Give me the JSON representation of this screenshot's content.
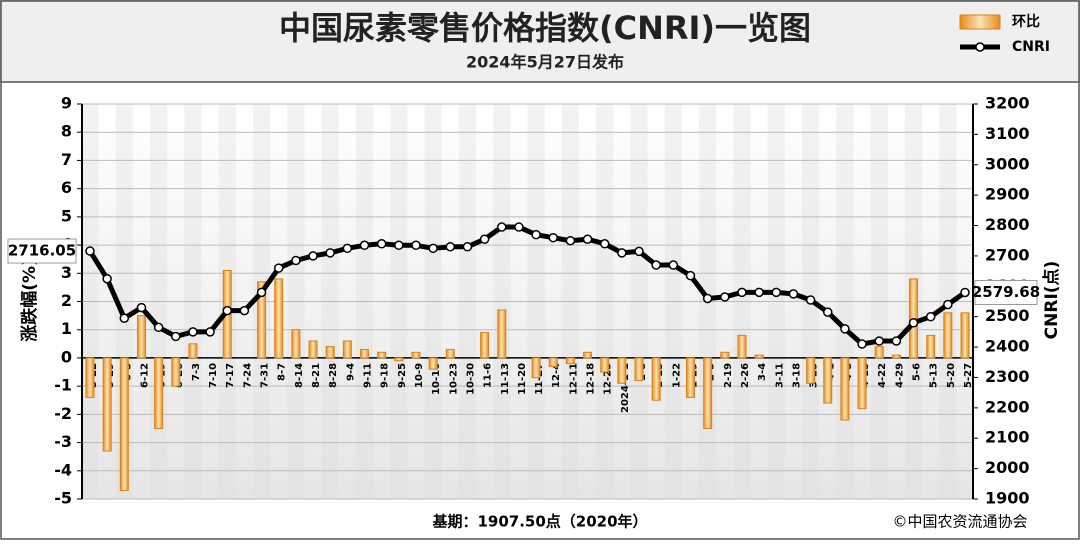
{
  "chart_data": {
    "type": "combo",
    "title": "中国尿素零售价格指数(CNRI)一览图",
    "subtitle": "2024年5月27日发布",
    "ylabel": "涨跌幅(%)",
    "y2label": "CNRI(点)",
    "footnote": "基期：1907.50点（2020年）",
    "source": "©中国农资流通协会",
    "legend": "top-right",
    "grid": true,
    "categories": [
      "5-22",
      "5-29",
      "6-5",
      "6-12",
      "6-19",
      "6-26",
      "7-3",
      "7-10",
      "7-17",
      "7-24",
      "7-31",
      "8-7",
      "8-14",
      "8-21",
      "8-28",
      "9-4",
      "9-11",
      "9-18",
      "9-25",
      "10-9",
      "10-16",
      "10-23",
      "10-30",
      "11-6",
      "11-13",
      "11-20",
      "11-27",
      "12-4",
      "12-11",
      "12-18",
      "12-25",
      "2024-1-1",
      "1-8",
      "1-15",
      "1-22",
      "1-29",
      "2-5",
      "2-19",
      "2-26",
      "3-4",
      "3-11",
      "3-18",
      "3-25",
      "4-1",
      "4-8",
      "4-15",
      "4-22",
      "4-29",
      "5-6",
      "5-13",
      "5-20",
      "5-27"
    ],
    "series": [
      {
        "name": "环比",
        "type": "bar",
        "color": "#f5c77e",
        "values": [
          -1.4,
          -3.3,
          -4.7,
          1.5,
          -2.5,
          -1.0,
          0.5,
          0.0,
          3.1,
          0.0,
          2.7,
          2.8,
          1.0,
          0.6,
          0.4,
          0.6,
          0.3,
          0.2,
          -0.1,
          0.2,
          -0.4,
          0.3,
          0.0,
          0.9,
          1.7,
          0.0,
          -0.7,
          -0.3,
          -0.2,
          0.2,
          -0.5,
          -0.9,
          -0.8,
          -1.5,
          0.0,
          -1.4,
          -2.5,
          0.2,
          0.8,
          0.1,
          0.0,
          0.0,
          -0.9,
          -1.6,
          -2.2,
          -1.8,
          0.4,
          0.1,
          2.8,
          0.8,
          1.6,
          1.6
        ]
      },
      {
        "name": "CNRI",
        "type": "line",
        "axis": "y2",
        "color": "#000000",
        "values": [
          2716.05,
          2625,
          2495,
          2530,
          2465,
          2435,
          2450,
          2450,
          2520,
          2520,
          2580,
          2660,
          2685,
          2700,
          2710,
          2725,
          2735,
          2740,
          2735,
          2735,
          2725,
          2730,
          2730,
          2755,
          2795,
          2795,
          2770,
          2760,
          2750,
          2755,
          2740,
          2710,
          2715,
          2670,
          2670,
          2635,
          2560,
          2565,
          2580,
          2580,
          2580,
          2575,
          2555,
          2515,
          2460,
          2410,
          2420,
          2420,
          2480,
          2500,
          2540,
          2579.68
        ]
      }
    ],
    "ylim": [
      -5,
      9
    ],
    "yticks": [
      -5,
      -4,
      -3,
      -2,
      -1,
      0,
      1,
      2,
      3,
      4,
      5,
      6,
      7,
      8,
      9
    ],
    "y2lim": [
      1900,
      3200
    ],
    "y2ticks": [
      1900,
      2000,
      2100,
      2200,
      2300,
      2400,
      2500,
      2600,
      2700,
      2800,
      2900,
      3000,
      3100,
      3200
    ]
  }
}
